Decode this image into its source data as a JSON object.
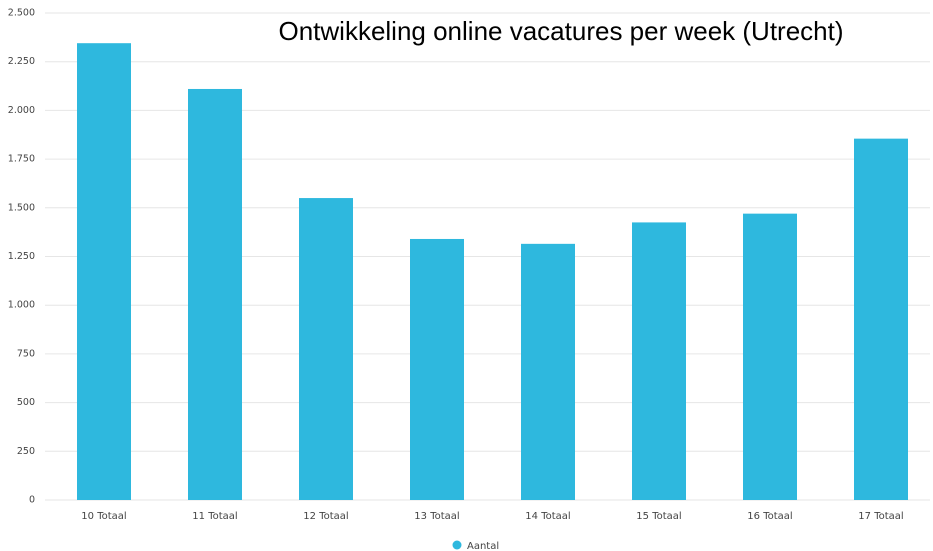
{
  "chart_data": {
    "type": "bar",
    "title": "Ontwikkeling online vacatures per week (Utrecht)",
    "categories": [
      "10 Totaal",
      "11 Totaal",
      "12 Totaal",
      "13 Totaal",
      "14 Totaal",
      "15 Totaal",
      "16 Totaal",
      "17 Totaal"
    ],
    "series": [
      {
        "name": "Aantal",
        "color": "#2eb8de",
        "values": [
          2345,
          2110,
          1550,
          1340,
          1315,
          1425,
          1470,
          1855
        ]
      }
    ],
    "ylim": [
      0,
      2500
    ],
    "yticks": [
      0,
      250,
      500,
      750,
      {
        "value": 1000,
        "label": "1.000"
      },
      {
        "value": 1250,
        "label": "1.250"
      },
      {
        "value": 1500,
        "label": "1.500"
      },
      {
        "value": 1750,
        "label": "1.750"
      },
      {
        "value": 2000,
        "label": "2.000"
      },
      {
        "value": 2250,
        "label": "2.250"
      },
      {
        "value": 2500,
        "label": "2.500"
      }
    ],
    "grid": true,
    "legend": "bottom"
  }
}
